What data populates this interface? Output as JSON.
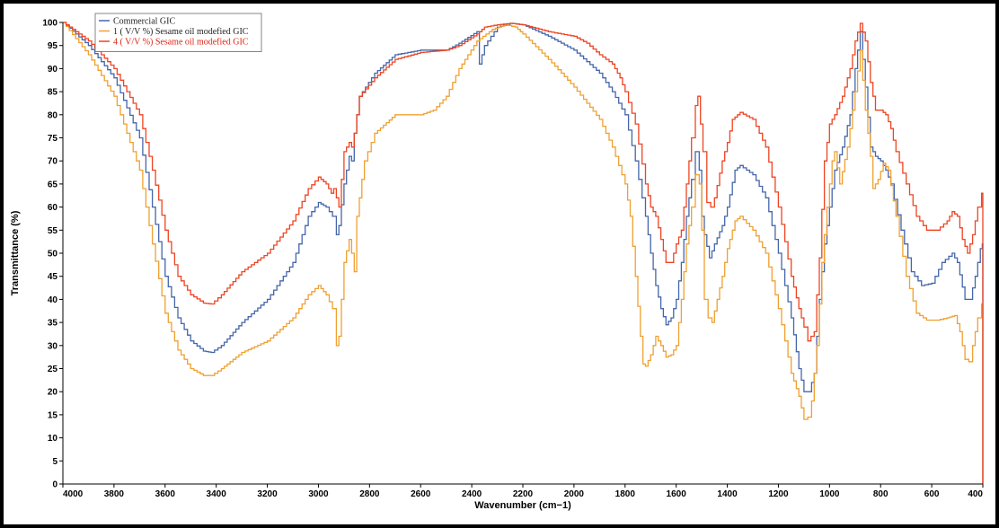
{
  "chart_data": {
    "type": "line",
    "xlabel": "Wavenumber (cm−1)",
    "ylabel": "Transmittance (%)",
    "xlim": [
      4000,
      400
    ],
    "ylim": [
      0,
      100
    ],
    "x_ticks": [
      4000,
      3800,
      3600,
      3400,
      3200,
      3000,
      2800,
      2600,
      2400,
      2200,
      2000,
      1800,
      1600,
      1400,
      1200,
      1000,
      800,
      600,
      400
    ],
    "y_ticks": [
      0,
      5,
      10,
      15,
      20,
      25,
      30,
      35,
      40,
      45,
      50,
      55,
      60,
      65,
      70,
      75,
      80,
      85,
      90,
      95,
      100
    ],
    "grid": false,
    "legend_position": "top-left",
    "series": [
      {
        "name": "Commercial GIC",
        "color": "#4466aa",
        "points": [
          [
            4000,
            100
          ],
          [
            3900,
            95
          ],
          [
            3800,
            88
          ],
          [
            3700,
            75
          ],
          [
            3650,
            60
          ],
          [
            3600,
            45
          ],
          [
            3550,
            36
          ],
          [
            3500,
            31
          ],
          [
            3450,
            28.8
          ],
          [
            3420,
            28.5
          ],
          [
            3380,
            30
          ],
          [
            3300,
            35
          ],
          [
            3200,
            40
          ],
          [
            3100,
            48
          ],
          [
            3040,
            58
          ],
          [
            3000,
            61
          ],
          [
            2970,
            60
          ],
          [
            2945,
            58
          ],
          [
            2930,
            54
          ],
          [
            2920,
            56
          ],
          [
            2900,
            65
          ],
          [
            2880,
            71
          ],
          [
            2870,
            70
          ],
          [
            2860,
            76
          ],
          [
            2840,
            84
          ],
          [
            2780,
            89
          ],
          [
            2700,
            93
          ],
          [
            2600,
            94
          ],
          [
            2500,
            94
          ],
          [
            2450,
            95.5
          ],
          [
            2380,
            98
          ],
          [
            2370,
            91
          ],
          [
            2350,
            95
          ],
          [
            2300,
            99
          ],
          [
            2250,
            99.8
          ],
          [
            2200,
            99.5
          ],
          [
            2100,
            97
          ],
          [
            2000,
            94
          ],
          [
            1900,
            89
          ],
          [
            1850,
            85
          ],
          [
            1800,
            80
          ],
          [
            1760,
            70
          ],
          [
            1720,
            58
          ],
          [
            1700,
            50
          ],
          [
            1680,
            43
          ],
          [
            1660,
            38
          ],
          [
            1640,
            34.5
          ],
          [
            1620,
            36
          ],
          [
            1600,
            40
          ],
          [
            1580,
            48
          ],
          [
            1560,
            58
          ],
          [
            1540,
            66
          ],
          [
            1525,
            72
          ],
          [
            1510,
            68
          ],
          [
            1500,
            58
          ],
          [
            1490,
            54
          ],
          [
            1470,
            49
          ],
          [
            1450,
            52
          ],
          [
            1420,
            56
          ],
          [
            1400,
            60
          ],
          [
            1370,
            68
          ],
          [
            1350,
            69
          ],
          [
            1300,
            67
          ],
          [
            1250,
            62
          ],
          [
            1200,
            50
          ],
          [
            1150,
            36
          ],
          [
            1120,
            25
          ],
          [
            1100,
            20
          ],
          [
            1080,
            20
          ],
          [
            1060,
            24
          ],
          [
            1040,
            40
          ],
          [
            1020,
            52
          ],
          [
            1000,
            60
          ],
          [
            980,
            68
          ],
          [
            950,
            73
          ],
          [
            920,
            80
          ],
          [
            900,
            90
          ],
          [
            880,
            98
          ],
          [
            860,
            86
          ],
          [
            840,
            73
          ],
          [
            820,
            71
          ],
          [
            800,
            70
          ],
          [
            780,
            68
          ],
          [
            760,
            65
          ],
          [
            720,
            55
          ],
          [
            680,
            46
          ],
          [
            640,
            43
          ],
          [
            600,
            43.5
          ],
          [
            560,
            48
          ],
          [
            520,
            50
          ],
          [
            500,
            48
          ],
          [
            470,
            40
          ],
          [
            450,
            40
          ],
          [
            430,
            45
          ],
          [
            410,
            51
          ],
          [
            402,
            52
          ],
          [
            400,
            0
          ]
        ]
      },
      {
        "name": "1 ( V/V %) Sesame oil modefied GIC",
        "color": "#f0a030",
        "points": [
          [
            4000,
            100
          ],
          [
            3900,
            93
          ],
          [
            3800,
            84
          ],
          [
            3700,
            68
          ],
          [
            3650,
            52
          ],
          [
            3600,
            37
          ],
          [
            3550,
            29
          ],
          [
            3500,
            25
          ],
          [
            3450,
            23.5
          ],
          [
            3420,
            23.5
          ],
          [
            3380,
            25
          ],
          [
            3300,
            28.5
          ],
          [
            3200,
            31
          ],
          [
            3100,
            36
          ],
          [
            3040,
            41
          ],
          [
            3000,
            43
          ],
          [
            2970,
            41
          ],
          [
            2945,
            38
          ],
          [
            2930,
            30
          ],
          [
            2920,
            32
          ],
          [
            2900,
            48
          ],
          [
            2880,
            53
          ],
          [
            2870,
            50
          ],
          [
            2860,
            46
          ],
          [
            2850,
            58
          ],
          [
            2820,
            70
          ],
          [
            2780,
            76
          ],
          [
            2700,
            80
          ],
          [
            2600,
            80
          ],
          [
            2550,
            81
          ],
          [
            2500,
            84
          ],
          [
            2450,
            90
          ],
          [
            2380,
            96
          ],
          [
            2320,
            98.5
          ],
          [
            2270,
            99.5
          ],
          [
            2230,
            99
          ],
          [
            2200,
            97.5
          ],
          [
            2100,
            92
          ],
          [
            2000,
            86
          ],
          [
            1900,
            79
          ],
          [
            1850,
            73
          ],
          [
            1800,
            65
          ],
          [
            1780,
            58
          ],
          [
            1760,
            45
          ],
          [
            1740,
            32
          ],
          [
            1730,
            26
          ],
          [
            1720,
            25.5
          ],
          [
            1700,
            28
          ],
          [
            1680,
            32
          ],
          [
            1660,
            30
          ],
          [
            1640,
            27.5
          ],
          [
            1620,
            28
          ],
          [
            1600,
            30
          ],
          [
            1580,
            40
          ],
          [
            1560,
            52
          ],
          [
            1540,
            60
          ],
          [
            1525,
            67
          ],
          [
            1510,
            65
          ],
          [
            1500,
            55
          ],
          [
            1490,
            40
          ],
          [
            1475,
            36
          ],
          [
            1460,
            35
          ],
          [
            1440,
            40
          ],
          [
            1420,
            45
          ],
          [
            1400,
            51
          ],
          [
            1370,
            57
          ],
          [
            1350,
            58
          ],
          [
            1300,
            55
          ],
          [
            1250,
            50
          ],
          [
            1200,
            38
          ],
          [
            1150,
            24
          ],
          [
            1120,
            19
          ],
          [
            1100,
            14
          ],
          [
            1085,
            14.5
          ],
          [
            1070,
            18
          ],
          [
            1050,
            30
          ],
          [
            1030,
            48
          ],
          [
            1010,
            60
          ],
          [
            990,
            70
          ],
          [
            980,
            72
          ],
          [
            960,
            65
          ],
          [
            930,
            73
          ],
          [
            900,
            85
          ],
          [
            880,
            94
          ],
          [
            860,
            81
          ],
          [
            840,
            71
          ],
          [
            830,
            64
          ],
          [
            810,
            66
          ],
          [
            790,
            69.5
          ],
          [
            770,
            68
          ],
          [
            740,
            58
          ],
          [
            700,
            45
          ],
          [
            660,
            37
          ],
          [
            620,
            35.5
          ],
          [
            580,
            35.5
          ],
          [
            540,
            36
          ],
          [
            510,
            36.5
          ],
          [
            490,
            33
          ],
          [
            470,
            27
          ],
          [
            455,
            26.5
          ],
          [
            440,
            30
          ],
          [
            420,
            36
          ],
          [
            405,
            39
          ],
          [
            400,
            0
          ]
        ]
      },
      {
        "name": "4 ( V/V %) Sesame oil modefied GIC",
        "color": "#ee4422",
        "points": [
          [
            4000,
            100
          ],
          [
            3900,
            96
          ],
          [
            3800,
            90
          ],
          [
            3700,
            80
          ],
          [
            3650,
            68
          ],
          [
            3600,
            55
          ],
          [
            3550,
            45
          ],
          [
            3500,
            41
          ],
          [
            3450,
            39.2
          ],
          [
            3420,
            39
          ],
          [
            3380,
            41
          ],
          [
            3300,
            46
          ],
          [
            3200,
            50
          ],
          [
            3100,
            57
          ],
          [
            3040,
            64
          ],
          [
            3000,
            66.5
          ],
          [
            2970,
            65
          ],
          [
            2950,
            63
          ],
          [
            2940,
            64
          ],
          [
            2930,
            62
          ],
          [
            2920,
            60
          ],
          [
            2900,
            72
          ],
          [
            2880,
            74
          ],
          [
            2870,
            73
          ],
          [
            2860,
            76
          ],
          [
            2840,
            84
          ],
          [
            2780,
            88
          ],
          [
            2700,
            92
          ],
          [
            2600,
            93.5
          ],
          [
            2500,
            94
          ],
          [
            2450,
            95
          ],
          [
            2380,
            97.5
          ],
          [
            2350,
            99
          ],
          [
            2300,
            99.5
          ],
          [
            2250,
            99.8
          ],
          [
            2200,
            99.5
          ],
          [
            2100,
            98
          ],
          [
            2000,
            97
          ],
          [
            1950,
            95.5
          ],
          [
            1900,
            93
          ],
          [
            1850,
            91
          ],
          [
            1820,
            88
          ],
          [
            1800,
            85
          ],
          [
            1760,
            78
          ],
          [
            1720,
            65
          ],
          [
            1700,
            60
          ],
          [
            1680,
            58
          ],
          [
            1660,
            53
          ],
          [
            1640,
            48
          ],
          [
            1620,
            48
          ],
          [
            1600,
            52
          ],
          [
            1580,
            55
          ],
          [
            1560,
            65
          ],
          [
            1540,
            75
          ],
          [
            1525,
            82
          ],
          [
            1515,
            84
          ],
          [
            1505,
            78
          ],
          [
            1495,
            72
          ],
          [
            1480,
            61
          ],
          [
            1465,
            60
          ],
          [
            1450,
            62
          ],
          [
            1420,
            70
          ],
          [
            1400,
            74
          ],
          [
            1380,
            79
          ],
          [
            1350,
            80.5
          ],
          [
            1300,
            79
          ],
          [
            1250,
            73
          ],
          [
            1200,
            60
          ],
          [
            1150,
            45
          ],
          [
            1120,
            38
          ],
          [
            1100,
            34
          ],
          [
            1085,
            31
          ],
          [
            1060,
            33
          ],
          [
            1040,
            49
          ],
          [
            1020,
            70
          ],
          [
            1000,
            78
          ],
          [
            980,
            80
          ],
          [
            950,
            84
          ],
          [
            920,
            90
          ],
          [
            900,
            96
          ],
          [
            880,
            99.8
          ],
          [
            860,
            96
          ],
          [
            840,
            87
          ],
          [
            820,
            81
          ],
          [
            800,
            81
          ],
          [
            780,
            80
          ],
          [
            760,
            77
          ],
          [
            740,
            72
          ],
          [
            700,
            65
          ],
          [
            660,
            58
          ],
          [
            620,
            55
          ],
          [
            580,
            55
          ],
          [
            540,
            57
          ],
          [
            520,
            59
          ],
          [
            500,
            58
          ],
          [
            480,
            53
          ],
          [
            460,
            50
          ],
          [
            440,
            54
          ],
          [
            420,
            60
          ],
          [
            405,
            63
          ],
          [
            400,
            0
          ]
        ]
      }
    ]
  }
}
